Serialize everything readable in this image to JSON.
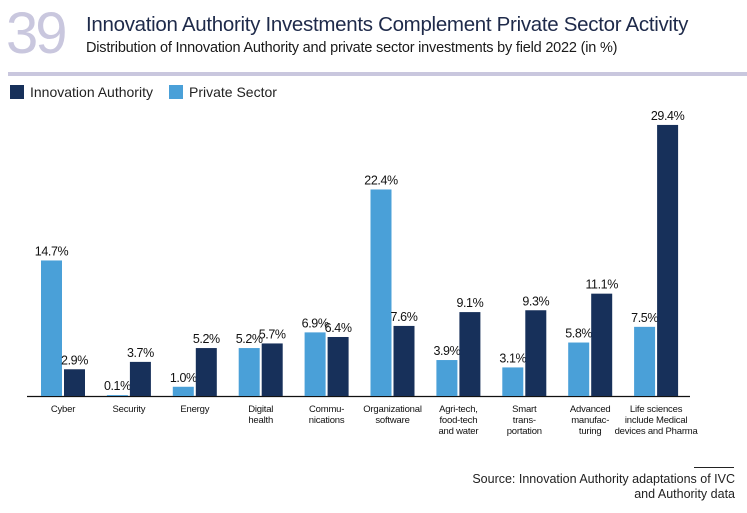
{
  "figure": {
    "number": "39",
    "title": "Innovation Authority Investments Complement Private Sector Activity",
    "subtitle": "Distribution of Innovation Authority and private sector investments by field 2022 (in %)",
    "source_line1": "Source: Innovation Authority adaptations of IVC",
    "source_line2": "and Authority data"
  },
  "colors": {
    "innovation_authority": "#17305a",
    "private_sector": "#4aa0d8",
    "accent": "#c9c7de"
  },
  "chart_data": {
    "type": "bar",
    "title": "Innovation Authority Investments Complement Private Sector Activity",
    "subtitle": "Distribution of Innovation Authority and private sector investments by field 2022 (in %)",
    "xlabel": "",
    "ylabel": "",
    "ylim": [
      0,
      30
    ],
    "grid": false,
    "legend_position": "top-left",
    "categories": [
      [
        "Cyber"
      ],
      [
        "Security"
      ],
      [
        "Energy"
      ],
      [
        "Digital",
        "health"
      ],
      [
        "Commu-",
        "nications"
      ],
      [
        "Organizational",
        "software"
      ],
      [
        "Agri-tech,",
        "food-tech",
        "and water"
      ],
      [
        "Smart",
        "trans-",
        "portation"
      ],
      [
        "Advanced",
        "manufac-",
        "turing"
      ],
      [
        "Life sciences",
        "include Medical",
        "devices and Pharma"
      ]
    ],
    "series": [
      {
        "name": "Private Sector",
        "color": "#4aa0d8",
        "values": [
          14.7,
          0.1,
          1.0,
          5.2,
          6.9,
          22.4,
          3.9,
          3.1,
          5.8,
          7.5
        ],
        "labels": [
          "14.7%",
          "0.1%",
          "1.0%",
          "5.2%",
          "6.9%",
          "22.4%",
          "3.9%",
          "3.1%",
          "5.8%",
          "7.5%"
        ]
      },
      {
        "name": "Innovation Authority",
        "color": "#17305a",
        "values": [
          2.9,
          3.7,
          5.2,
          5.7,
          6.4,
          7.6,
          9.1,
          9.3,
          11.1,
          29.4
        ],
        "labels": [
          "2.9%",
          "3.7%",
          "5.2%",
          "5.7%",
          "6.4%",
          "7.6%",
          "9.1%",
          "9.3%",
          "11.1%",
          "29.4%"
        ]
      }
    ],
    "legend": [
      "Innovation Authority",
      "Private Sector"
    ]
  }
}
